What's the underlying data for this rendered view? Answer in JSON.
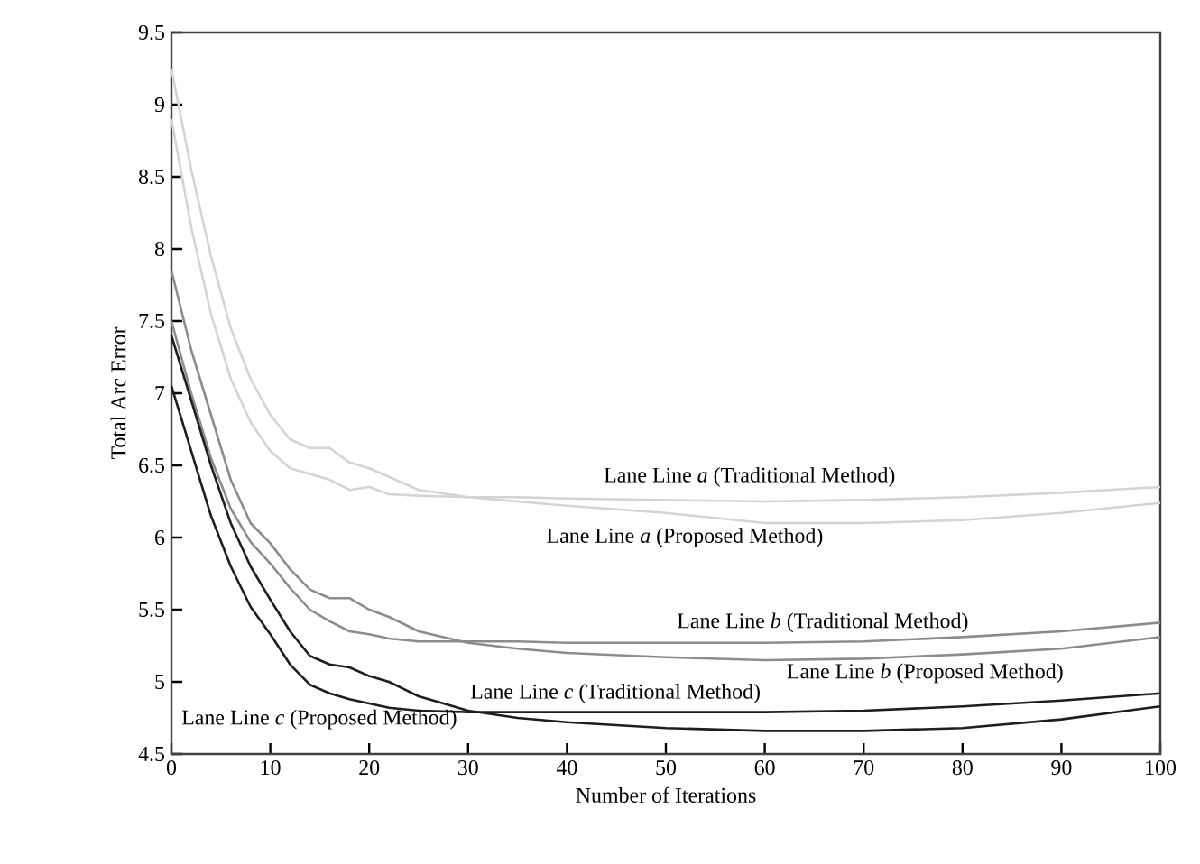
{
  "chart_data": {
    "type": "line",
    "xlabel": "Number of Iterations",
    "ylabel": "Total Arc Error",
    "x": [
      0,
      2,
      4,
      6,
      8,
      10,
      12,
      14,
      16,
      18,
      20,
      22,
      25,
      30,
      35,
      40,
      50,
      60,
      70,
      80,
      90,
      100
    ],
    "xlim": [
      0,
      100
    ],
    "ylim": [
      4.5,
      9.5
    ],
    "xticks": [
      0,
      10,
      20,
      30,
      40,
      50,
      60,
      70,
      80,
      90,
      100
    ],
    "yticks": [
      4.5,
      5,
      5.5,
      6,
      6.5,
      7,
      7.5,
      8,
      8.5,
      9,
      9.5
    ],
    "series": [
      {
        "name": "Lane Line *a* (Traditional Method)",
        "color": "#d4d4d4",
        "values": [
          8.9,
          8.15,
          7.55,
          7.1,
          6.8,
          6.6,
          6.48,
          6.44,
          6.4,
          6.33,
          6.35,
          6.3,
          6.29,
          6.28,
          6.28,
          6.27,
          6.26,
          6.25,
          6.26,
          6.28,
          6.31,
          6.35
        ]
      },
      {
        "name": "Lane Line *a* (Proposed Method)",
        "color": "#d4d4d4",
        "values": [
          9.25,
          8.55,
          7.95,
          7.45,
          7.1,
          6.85,
          6.68,
          6.62,
          6.62,
          6.52,
          6.48,
          6.42,
          6.33,
          6.28,
          6.25,
          6.22,
          6.17,
          6.1,
          6.1,
          6.12,
          6.17,
          6.24
        ]
      },
      {
        "name": "Lane Line *b* (Traditional Method)",
        "color": "#8c8c8c",
        "values": [
          7.5,
          7.0,
          6.55,
          6.2,
          5.97,
          5.82,
          5.65,
          5.5,
          5.42,
          5.35,
          5.33,
          5.3,
          5.28,
          5.28,
          5.28,
          5.27,
          5.27,
          5.27,
          5.28,
          5.31,
          5.35,
          5.41
        ]
      },
      {
        "name": "Lane Line *b* (Proposed Method)",
        "color": "#8c8c8c",
        "values": [
          7.85,
          7.3,
          6.85,
          6.4,
          6.1,
          5.96,
          5.78,
          5.64,
          5.58,
          5.58,
          5.5,
          5.45,
          5.35,
          5.27,
          5.23,
          5.2,
          5.17,
          5.15,
          5.16,
          5.19,
          5.23,
          5.31
        ]
      },
      {
        "name": "Lane Line *c* (Traditional Method)",
        "color": "#1e1e1e",
        "values": [
          7.05,
          6.6,
          6.15,
          5.8,
          5.52,
          5.33,
          5.12,
          4.98,
          4.92,
          4.88,
          4.85,
          4.82,
          4.8,
          4.79,
          4.79,
          4.79,
          4.79,
          4.79,
          4.8,
          4.83,
          4.87,
          4.92
        ]
      },
      {
        "name": "Lane Line *c* (Proposed Method)",
        "color": "#1e1e1e",
        "values": [
          7.4,
          6.95,
          6.5,
          6.1,
          5.8,
          5.57,
          5.35,
          5.18,
          5.12,
          5.1,
          5.04,
          5.0,
          4.9,
          4.8,
          4.75,
          4.72,
          4.68,
          4.66,
          4.66,
          4.68,
          4.74,
          4.83
        ]
      }
    ]
  }
}
